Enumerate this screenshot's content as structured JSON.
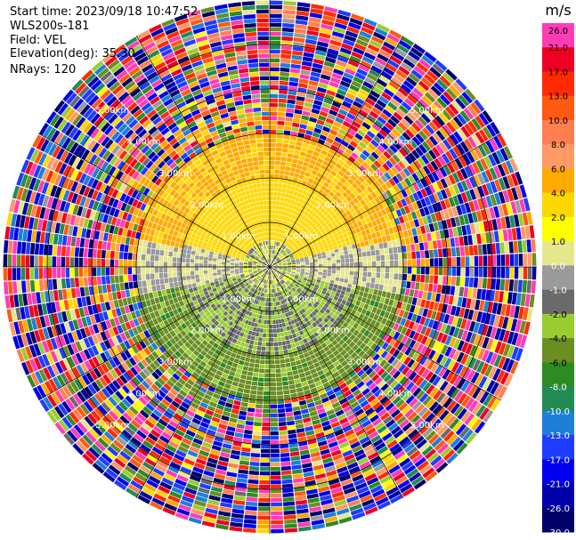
{
  "header": {
    "start_time": "Start time: 2023/09/18 10:47:52",
    "site": "WLS200s-181",
    "field": "Field: VEL",
    "elevation": "Elevation(deg): 35.30",
    "nrays": "NRays: 120"
  },
  "colorbar": {
    "unit": "m/s",
    "ticks": [
      "26.0",
      "21.0",
      "17.0",
      "13.0",
      "10.0",
      "8.0",
      "6.0",
      "4.0",
      "2.0",
      "1.0",
      "0.0",
      "-1.0",
      "-2.0",
      "-4.0",
      "-6.0",
      "-8.0",
      "-10.0",
      "-13.0",
      "-17.0",
      "-21.0",
      "-26.0",
      "-30.0"
    ],
    "colors": [
      "#ff3cb4",
      "#ee0022",
      "#ff2a00",
      "#ff5a10",
      "#ff7f50",
      "#ff9a66",
      "#ffaa00",
      "#ffd700",
      "#ffff00",
      "#e6e68c",
      "#9a9a9a",
      "#6a6a6a",
      "#9acd32",
      "#6b8e23",
      "#2e8b22",
      "#228b55",
      "#1e7fd8",
      "#1e3cff",
      "#0000ee",
      "#0000aa",
      "#00006a"
    ]
  },
  "chart_data": {
    "type": "heatmap",
    "projection": "polar PPI",
    "field": "VEL",
    "n_rays": 120,
    "range_ring_labels": [
      "1.00km",
      "2.00km",
      "3.00km",
      "4.00km",
      "5.00km"
    ],
    "range_rings_km": [
      1,
      2,
      3,
      4,
      5
    ],
    "max_range_km": 6.0,
    "value_range": [
      -30,
      26
    ],
    "azimuth_spokes_deg": [
      0,
      30,
      60,
      90,
      120,
      150,
      180,
      210,
      240,
      270,
      300,
      330
    ],
    "bands": [
      {
        "from_km": 0.0,
        "to_km": 0.6,
        "pattern": "mixed",
        "values": [
          -1,
          0,
          2,
          1,
          -2
        ]
      },
      {
        "from_km": 0.6,
        "to_km": 2.0,
        "north_half_value": 3,
        "south_half_value": -2,
        "east_west_value": 0
      },
      {
        "from_km": 2.0,
        "to_km": 3.0,
        "north_half_value": 4.5,
        "south_half_value": -5,
        "east_west_value": 0
      },
      {
        "from_km": 3.0,
        "to_km": 3.6,
        "pattern": "noise"
      },
      {
        "from_km": 3.6,
        "to_km": 6.0,
        "pattern": "noise"
      }
    ]
  }
}
